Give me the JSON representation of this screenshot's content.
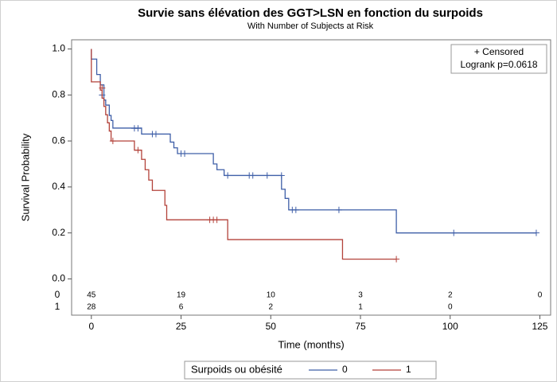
{
  "chart_data": {
    "type": "kaplan-meier",
    "title": "Survie sans élévation des GGT>LSN en fonction du surpoids",
    "subtitle": "With Number of Subjects at Risk",
    "x_label": "Time (months)",
    "y_label": "Survival Probability",
    "inset": [
      "+ Censored",
      "Logrank p=0.0618"
    ],
    "legend_title": "Surpoids ou obésité",
    "legend_position": "bottom",
    "xlim": [
      -5.5,
      128
    ],
    "ylim": [
      -0.04,
      1.04
    ],
    "xticks": [
      0,
      25,
      50,
      75,
      100,
      125
    ],
    "yticks": [
      {
        "value": 0,
        "label": "0.0"
      },
      {
        "value": 0.2,
        "label": "0.2"
      },
      {
        "value": 0.4,
        "label": "0.4"
      },
      {
        "value": 0.6,
        "label": "0.6"
      },
      {
        "value": 0.8,
        "label": "0.8"
      },
      {
        "value": 1,
        "label": "1.0"
      }
    ],
    "at_risk_times": [
      0,
      25,
      50,
      75,
      100,
      125
    ],
    "series": [
      {
        "name": "0",
        "color": "#3f5fa8",
        "x": [
          0,
          0,
          1.5,
          2.5,
          3.5,
          4,
          5,
          5.5,
          6,
          14,
          22,
          23,
          24,
          34,
          35,
          37,
          53,
          54,
          55,
          85,
          124
        ],
        "values": [
          1,
          0.956,
          0.889,
          0.844,
          0.778,
          0.756,
          0.711,
          0.689,
          0.656,
          0.63,
          0.595,
          0.57,
          0.545,
          0.5,
          0.475,
          0.45,
          0.39,
          0.35,
          0.3,
          0.2,
          0.2
        ],
        "censored_x": [
          3,
          12,
          13,
          17,
          18,
          25,
          26,
          38,
          44,
          45,
          49,
          53,
          56,
          57,
          69,
          101,
          124
        ],
        "censored_values": [
          0.8,
          0.655,
          0.655,
          0.63,
          0.63,
          0.545,
          0.545,
          0.45,
          0.45,
          0.45,
          0.45,
          0.45,
          0.3,
          0.3,
          0.3,
          0.2,
          0.2
        ],
        "at_risk": [
          45,
          19,
          10,
          3,
          2,
          0
        ]
      },
      {
        "name": "1",
        "color": "#b3423a",
        "x": [
          0,
          0,
          2.5,
          3,
          3.5,
          4,
          4.5,
          5,
          5.5,
          12,
          14,
          15,
          16,
          17,
          20.5,
          21,
          38,
          70,
          85
        ],
        "values": [
          1,
          0.857,
          0.821,
          0.786,
          0.75,
          0.714,
          0.679,
          0.643,
          0.6,
          0.56,
          0.52,
          0.475,
          0.43,
          0.385,
          0.32,
          0.257,
          0.171,
          0.086,
          0.086
        ],
        "censored_x": [
          3,
          6,
          13,
          33,
          34,
          35,
          85
        ],
        "censored_values": [
          0.83,
          0.6,
          0.56,
          0.257,
          0.257,
          0.257,
          0.086
        ],
        "at_risk": [
          28,
          6,
          2,
          1,
          0,
          null
        ]
      }
    ]
  }
}
